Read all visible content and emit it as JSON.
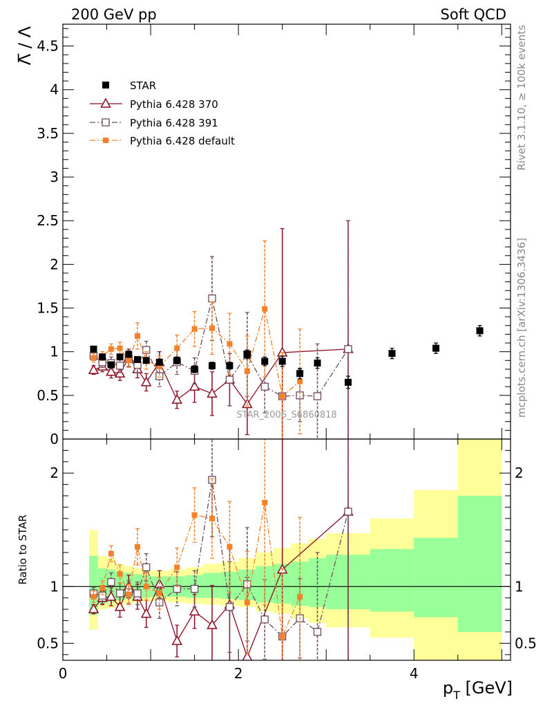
{
  "header": {
    "left": "200 GeV pp",
    "right": "Soft QCD"
  },
  "side_labels": {
    "rivet": "Rivet 3.1.10, ≥ 100k events",
    "mcplots": "mcplots.cern.ch [arXiv:1306.3436]"
  },
  "analysis_label": "STAR_2006_S6860818",
  "colors": {
    "star": "#000000",
    "p370": "#8b0a1e",
    "p391": "#6e4a5a",
    "pdef": "#f5822a",
    "band_inner": "#99ff99",
    "band_outer": "#ffff99"
  },
  "chart_data": [
    {
      "type": "scatter",
      "title": "",
      "ylabel": "Λ̅ / Λ",
      "xlabel": "",
      "xlim": [
        0,
        5.1
      ],
      "ylim": [
        0,
        4.75
      ],
      "yticks": [
        {
          "v": 0.5,
          "label": "0.5"
        },
        {
          "v": 1,
          "label": "1"
        },
        {
          "v": 1.5,
          "label": "1.5"
        },
        {
          "v": 2,
          "label": "2"
        },
        {
          "v": 2.5,
          "label": "2.5"
        },
        {
          "v": 3,
          "label": "3"
        },
        {
          "v": 3.5,
          "label": "3.5"
        },
        {
          "v": 4,
          "label": "4"
        },
        {
          "v": 4.5,
          "label": "4.5"
        }
      ],
      "legend": {
        "position": "top-left",
        "entries": [
          {
            "key": "star",
            "label": "STAR"
          },
          {
            "key": "p370",
            "label": "Pythia 6.428 370"
          },
          {
            "key": "p391",
            "label": "Pythia 6.428 391"
          },
          {
            "key": "pdef",
            "label": "Pythia 6.428 default"
          }
        ]
      },
      "series": [
        {
          "key": "star",
          "name": "STAR",
          "x": [
            0.35,
            0.45,
            0.55,
            0.65,
            0.75,
            0.85,
            0.95,
            1.1,
            1.3,
            1.5,
            1.7,
            1.9,
            2.1,
            2.3,
            2.5,
            2.7,
            2.9,
            3.25,
            3.75,
            4.25,
            4.75
          ],
          "y": [
            1.03,
            0.94,
            0.85,
            0.94,
            0.97,
            0.91,
            0.9,
            0.88,
            0.9,
            0.8,
            0.84,
            0.84,
            0.97,
            0.89,
            0.89,
            0.75,
            0.87,
            0.65,
            0.98,
            1.04,
            1.24
          ],
          "err": [
            0.03,
            0.03,
            0.03,
            0.03,
            0.03,
            0.03,
            0.03,
            0.03,
            0.04,
            0.04,
            0.04,
            0.04,
            0.05,
            0.05,
            0.06,
            0.06,
            0.06,
            0.07,
            0.06,
            0.06,
            0.06
          ]
        },
        {
          "key": "p370",
          "name": "Pythia 6.428 370",
          "x": [
            0.35,
            0.45,
            0.55,
            0.65,
            0.75,
            0.85,
            0.95,
            1.1,
            1.3,
            1.5,
            1.7,
            1.9,
            2.1,
            2.5,
            3.25
          ],
          "y": [
            0.79,
            0.83,
            0.77,
            0.75,
            0.93,
            0.8,
            0.65,
            0.88,
            0.45,
            0.6,
            0.52,
            0.68,
            0.4,
            0.99,
            1.03
          ],
          "err": [
            0.05,
            0.06,
            0.07,
            0.08,
            0.1,
            0.1,
            0.1,
            0.12,
            0.1,
            0.18,
            0.25,
            0.3,
            0.35,
            1.42,
            1.47
          ]
        },
        {
          "key": "p391",
          "name": "Pythia 6.428 391",
          "x": [
            0.35,
            0.45,
            0.55,
            0.65,
            0.75,
            0.85,
            0.95,
            1.1,
            1.3,
            1.5,
            1.7,
            1.9,
            2.1,
            2.3,
            2.5,
            2.7,
            2.9,
            3.25
          ],
          "y": [
            0.95,
            0.88,
            0.87,
            0.84,
            0.92,
            0.85,
            1.02,
            0.72,
            0.88,
            0.78,
            1.61,
            0.68,
            0.97,
            0.6,
            0.49,
            0.5,
            0.49,
            1.03
          ],
          "err": [
            0.05,
            0.06,
            0.07,
            0.08,
            0.09,
            0.09,
            0.1,
            0.12,
            0.14,
            0.15,
            0.48,
            0.3,
            0.48,
            0.3,
            0.5,
            0.3,
            0.6,
            1.47
          ]
        },
        {
          "key": "pdef",
          "name": "Pythia 6.428 default",
          "x": [
            0.35,
            0.45,
            0.55,
            0.65,
            0.75,
            0.85,
            0.95,
            1.1,
            1.3,
            1.5,
            1.7,
            1.9,
            2.1,
            2.3,
            2.5,
            2.7
          ],
          "y": [
            0.93,
            0.95,
            1.03,
            1.04,
            0.9,
            1.18,
            0.9,
            0.83,
            1.04,
            1.26,
            1.27,
            1.09,
            0.78,
            1.49,
            0.49,
            0.66
          ],
          "err": [
            0.05,
            0.05,
            0.06,
            0.07,
            0.08,
            0.15,
            0.1,
            0.12,
            0.15,
            0.2,
            0.3,
            0.35,
            0.4,
            0.78,
            0.5,
            0.6
          ]
        }
      ]
    },
    {
      "type": "scatter",
      "title": "",
      "ylabel": "Ratio to STAR",
      "xlabel": "p_T [GeV]",
      "xlim": [
        0,
        5.1
      ],
      "ylim": [
        0.35,
        2.3
      ],
      "xticks": [
        {
          "v": 0,
          "label": "0"
        },
        {
          "v": 2,
          "label": "2"
        },
        {
          "v": 4,
          "label": "4"
        }
      ],
      "yticks": [
        {
          "v": 0.5,
          "label": "0.5"
        },
        {
          "v": 1,
          "label": "1"
        },
        {
          "v": 2,
          "label": "2"
        }
      ],
      "reference_line": 1,
      "bands": [
        {
          "x0": 0.3,
          "x1": 0.4,
          "in_lo": 0.75,
          "in_hi": 1.27,
          "out_lo": 0.62,
          "out_hi": 1.5
        },
        {
          "x0": 0.4,
          "x1": 0.5,
          "in_lo": 0.85,
          "in_hi": 1.16,
          "out_lo": 0.8,
          "out_hi": 1.27
        },
        {
          "x0": 0.5,
          "x1": 0.6,
          "in_lo": 0.86,
          "in_hi": 1.15,
          "out_lo": 0.81,
          "out_hi": 1.25
        },
        {
          "x0": 0.6,
          "x1": 0.7,
          "in_lo": 0.88,
          "in_hi": 1.13,
          "out_lo": 0.83,
          "out_hi": 1.2
        },
        {
          "x0": 0.7,
          "x1": 0.8,
          "in_lo": 0.89,
          "in_hi": 1.12,
          "out_lo": 0.85,
          "out_hi": 1.18
        },
        {
          "x0": 0.8,
          "x1": 0.9,
          "in_lo": 0.9,
          "in_hi": 1.11,
          "out_lo": 0.86,
          "out_hi": 1.16
        },
        {
          "x0": 0.9,
          "x1": 1.0,
          "in_lo": 0.9,
          "in_hi": 1.1,
          "out_lo": 0.87,
          "out_hi": 1.15
        },
        {
          "x0": 1.0,
          "x1": 1.2,
          "in_lo": 0.91,
          "in_hi": 1.09,
          "out_lo": 0.87,
          "out_hi": 1.14
        },
        {
          "x0": 1.2,
          "x1": 1.4,
          "in_lo": 0.91,
          "in_hi": 1.09,
          "out_lo": 0.86,
          "out_hi": 1.15
        },
        {
          "x0": 1.4,
          "x1": 1.6,
          "in_lo": 0.9,
          "in_hi": 1.1,
          "out_lo": 0.85,
          "out_hi": 1.17
        },
        {
          "x0": 1.6,
          "x1": 1.8,
          "in_lo": 0.9,
          "in_hi": 1.12,
          "out_lo": 0.84,
          "out_hi": 1.2
        },
        {
          "x0": 1.8,
          "x1": 2.0,
          "in_lo": 0.89,
          "in_hi": 1.13,
          "out_lo": 0.83,
          "out_hi": 1.22
        },
        {
          "x0": 2.0,
          "x1": 2.2,
          "in_lo": 0.88,
          "in_hi": 1.15,
          "out_lo": 0.82,
          "out_hi": 1.25
        },
        {
          "x0": 2.2,
          "x1": 2.4,
          "in_lo": 0.86,
          "in_hi": 1.18,
          "out_lo": 0.78,
          "out_hi": 1.3
        },
        {
          "x0": 2.4,
          "x1": 2.6,
          "in_lo": 0.85,
          "in_hi": 1.2,
          "out_lo": 0.76,
          "out_hi": 1.34
        },
        {
          "x0": 2.6,
          "x1": 2.8,
          "in_lo": 0.83,
          "in_hi": 1.22,
          "out_lo": 0.72,
          "out_hi": 1.38
        },
        {
          "x0": 2.8,
          "x1": 3.0,
          "in_lo": 0.82,
          "in_hi": 1.25,
          "out_lo": 0.68,
          "out_hi": 1.42
        },
        {
          "x0": 3.0,
          "x1": 3.5,
          "in_lo": 0.8,
          "in_hi": 1.28,
          "out_lo": 0.64,
          "out_hi": 1.47
        },
        {
          "x0": 3.5,
          "x1": 4.0,
          "in_lo": 0.78,
          "in_hi": 1.33,
          "out_lo": 0.55,
          "out_hi": 1.6
        },
        {
          "x0": 4.0,
          "x1": 4.5,
          "in_lo": 0.73,
          "in_hi": 1.43,
          "out_lo": 0.35,
          "out_hi": 1.85
        },
        {
          "x0": 4.5,
          "x1": 5.0,
          "in_lo": 0.6,
          "in_hi": 1.8,
          "out_lo": 0.35,
          "out_hi": 2.3
        }
      ],
      "series": [
        {
          "key": "p370",
          "name": "Pythia 6.428 370",
          "x": [
            0.35,
            0.45,
            0.55,
            0.65,
            0.75,
            0.85,
            0.95,
            1.1,
            1.3,
            1.5,
            1.7,
            1.9,
            2.1,
            2.5,
            3.25
          ],
          "y": [
            0.8,
            0.9,
            0.91,
            0.82,
            1.0,
            0.91,
            0.76,
            1.02,
            0.52,
            0.78,
            0.66,
            0.84,
            0.38,
            1.15,
            1.66
          ],
          "err": [
            0.04,
            0.06,
            0.08,
            0.09,
            0.1,
            0.11,
            0.12,
            0.12,
            0.14,
            0.15,
            0.35,
            0.5,
            0.7,
            1.4,
            1.6
          ]
        },
        {
          "key": "p391",
          "name": "Pythia 6.428 391",
          "x": [
            0.35,
            0.45,
            0.55,
            0.65,
            0.75,
            0.85,
            0.95,
            1.1,
            1.3,
            1.5,
            1.7,
            1.9,
            2.1,
            2.3,
            2.5,
            2.7,
            2.9,
            3.25
          ],
          "y": [
            0.94,
            0.92,
            1.04,
            0.94,
            0.95,
            0.94,
            1.17,
            0.86,
            0.98,
            0.98,
            1.94,
            0.82,
            1.02,
            0.71,
            0.56,
            0.72,
            0.6,
            1.66
          ],
          "err": [
            0.05,
            0.07,
            0.08,
            0.09,
            0.1,
            0.1,
            0.12,
            0.14,
            0.15,
            0.16,
            0.5,
            0.4,
            0.5,
            0.35,
            0.6,
            0.35,
            0.7,
            1.6
          ]
        },
        {
          "key": "pdef",
          "name": "Pythia 6.428 default",
          "x": [
            0.35,
            0.45,
            0.55,
            0.65,
            0.75,
            0.85,
            0.95,
            1.1,
            1.3,
            1.5,
            1.7,
            1.9,
            2.1,
            2.3,
            2.5,
            2.7
          ],
          "y": [
            0.91,
            0.99,
            1.29,
            1.11,
            0.93,
            1.35,
            1.0,
            0.94,
            1.17,
            1.63,
            1.6,
            1.35,
            0.86,
            1.74,
            0.56,
            0.91
          ],
          "err": [
            0.05,
            0.06,
            0.07,
            0.08,
            0.09,
            0.16,
            0.12,
            0.14,
            0.17,
            0.24,
            0.35,
            0.4,
            0.45,
            0.9,
            0.6,
            0.7
          ]
        }
      ]
    }
  ]
}
